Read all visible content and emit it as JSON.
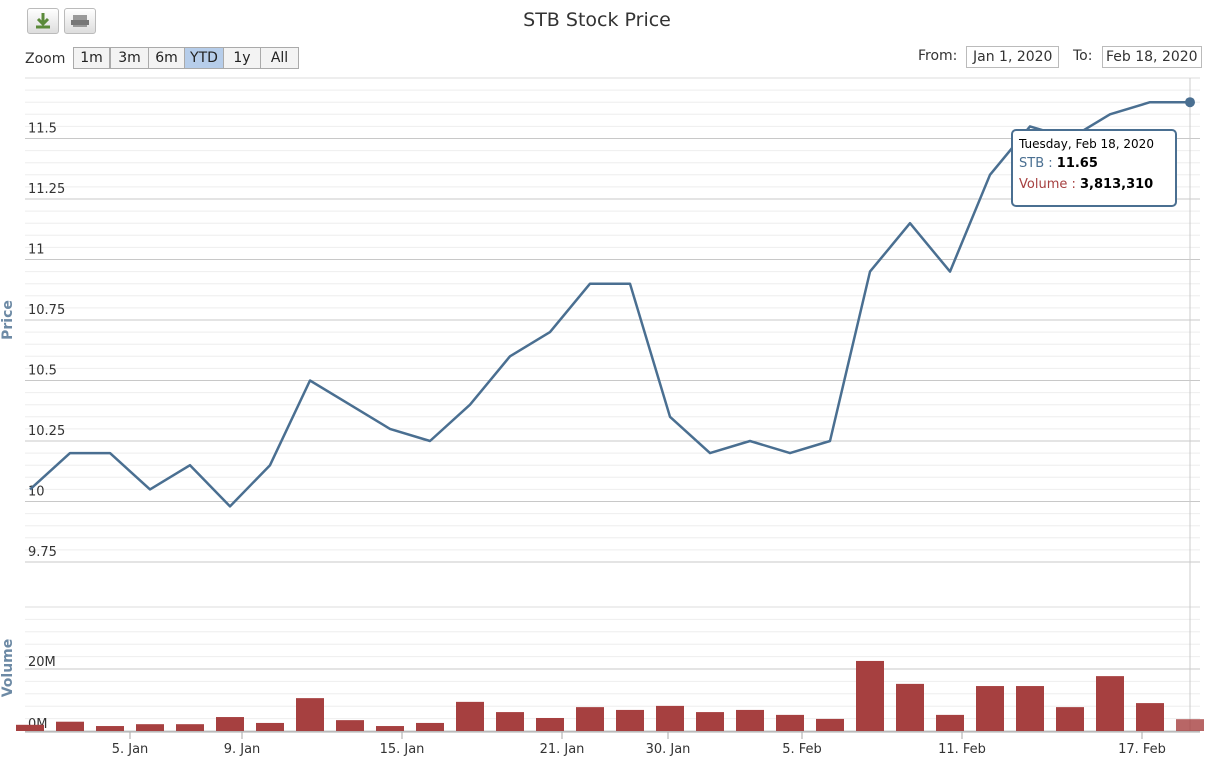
{
  "ui": {
    "zoom_label": "Zoom",
    "buttons": [
      "1m",
      "3m",
      "6m",
      "YTD",
      "1y",
      "All"
    ],
    "from_label": "From:",
    "from_date": "Jan 1, 2020",
    "to_label": "To:",
    "to_date": "Feb 18, 2020"
  },
  "chart_data": {
    "type": "stock",
    "title": "STB Stock Price",
    "ylabel": "Price",
    "y2label": "Volume",
    "xticks": [
      {
        "value": 2.5,
        "label": "5. Jan"
      },
      {
        "value": 5.3,
        "label": "9. Jan"
      },
      {
        "value": 9.3,
        "label": "15. Jan"
      },
      {
        "value": 13.3,
        "label": "21. Jan"
      },
      {
        "value": 15.95,
        "label": "30. Jan"
      },
      {
        "value": 19.3,
        "label": "5. Feb"
      },
      {
        "value": 23.3,
        "label": "11. Feb"
      },
      {
        "value": 27.8,
        "label": "17. Feb"
      }
    ],
    "ylim": [
      9.75,
      11.75
    ],
    "yticks": [
      9.75,
      10,
      10.25,
      10.5,
      10.75,
      11,
      11.25,
      11.5
    ],
    "y2lim": [
      0,
      40000000
    ],
    "y2ticks": [
      {
        "value": 0,
        "label": "0M"
      },
      {
        "value": 20000000,
        "label": "20M"
      }
    ],
    "grid": true,
    "series": [
      {
        "name": "STB",
        "color": "#4a6f91",
        "values": [
          10.05,
          10.2,
          10.2,
          10.05,
          10.15,
          9.98,
          10.15,
          10.5,
          10.4,
          10.3,
          10.25,
          10.4,
          10.6,
          10.7,
          10.9,
          10.9,
          10.35,
          10.2,
          10.25,
          10.2,
          10.25,
          10.95,
          11.15,
          10.95,
          11.35,
          11.55,
          11.5,
          11.6,
          11.65,
          11.65
        ]
      },
      {
        "name": "Volume",
        "color": "#a64040",
        "axis": "y2",
        "values": [
          2000000,
          3000000,
          1600000,
          2200000,
          2200000,
          4500000,
          2600000,
          10600000,
          3500000,
          1600000,
          2600000,
          9400000,
          6100000,
          4200000,
          7700000,
          6800000,
          8100000,
          6100000,
          6800000,
          5200000,
          3900000,
          22600000,
          15200000,
          5200000,
          14500000,
          14500000,
          7700000,
          17700000,
          9000000,
          3813310
        ]
      }
    ],
    "tooltip": {
      "header": "Tuesday, Feb 18, 2020",
      "volume_label": "3,813,310"
    }
  }
}
